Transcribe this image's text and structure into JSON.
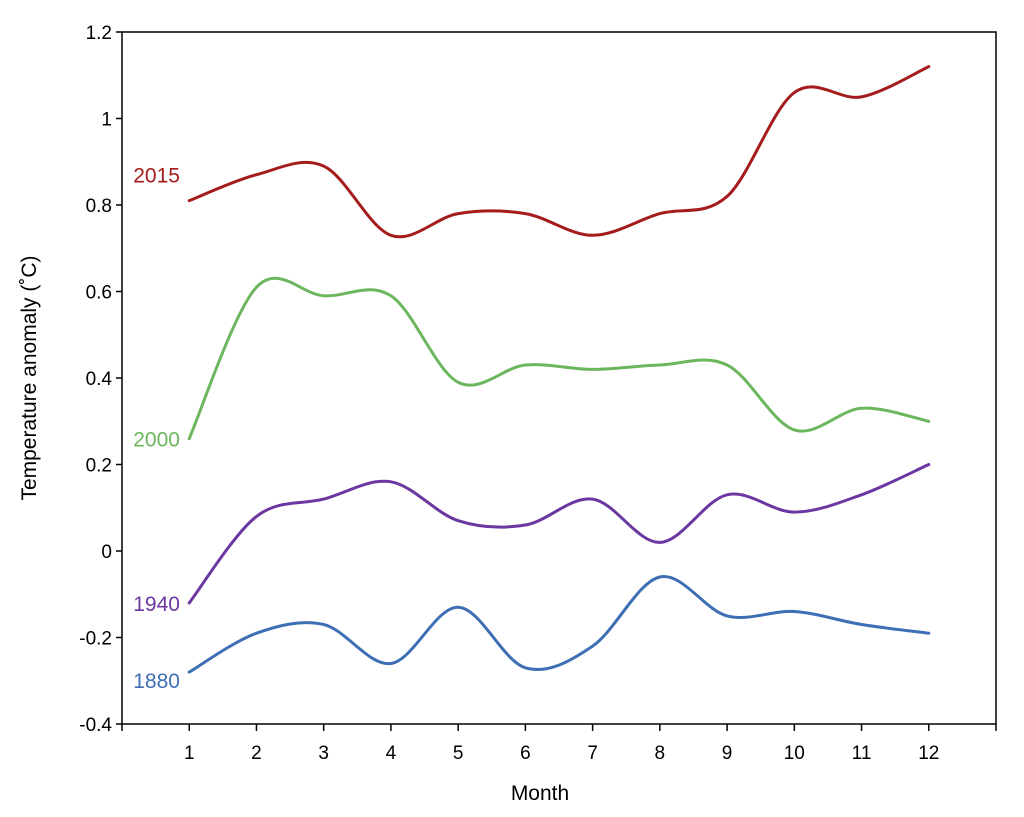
{
  "chart_data": {
    "type": "line",
    "xlabel": "Month",
    "ylabel": "Temperature anomaly (˚C)",
    "x": [
      1,
      2,
      3,
      4,
      5,
      6,
      7,
      8,
      9,
      10,
      11,
      12
    ],
    "xlim": [
      0,
      13
    ],
    "ylim": [
      -0.4,
      1.2
    ],
    "y_ticks": [
      "-0.4",
      "-0.2",
      "0",
      "0.2",
      "0.4",
      "0.6",
      "0.8",
      "1",
      "1.2"
    ],
    "x_ticks": [
      "1",
      "2",
      "3",
      "4",
      "5",
      "6",
      "7",
      "8",
      "9",
      "10",
      "11",
      "12"
    ],
    "grid": false,
    "legend": "none",
    "series": [
      {
        "name": "2015",
        "color": "#a51c1c",
        "values": [
          0.81,
          0.87,
          0.89,
          0.73,
          0.78,
          0.78,
          0.73,
          0.78,
          0.82,
          1.06,
          1.05,
          1.12
        ]
      },
      {
        "name": "2000",
        "color": "#6cb65e",
        "values": [
          0.26,
          0.61,
          0.59,
          0.59,
          0.39,
          0.43,
          0.42,
          0.43,
          0.43,
          0.28,
          0.33,
          0.3
        ]
      },
      {
        "name": "1940",
        "color": "#6b37a0",
        "values": [
          -0.12,
          0.08,
          0.12,
          0.16,
          0.07,
          0.06,
          0.12,
          0.02,
          0.13,
          0.09,
          0.13,
          0.2
        ]
      },
      {
        "name": "1880",
        "color": "#3e6fb4",
        "values": [
          -0.28,
          -0.19,
          -0.17,
          -0.26,
          -0.13,
          -0.27,
          -0.22,
          -0.06,
          -0.15,
          -0.14,
          -0.17,
          -0.19
        ]
      }
    ]
  }
}
